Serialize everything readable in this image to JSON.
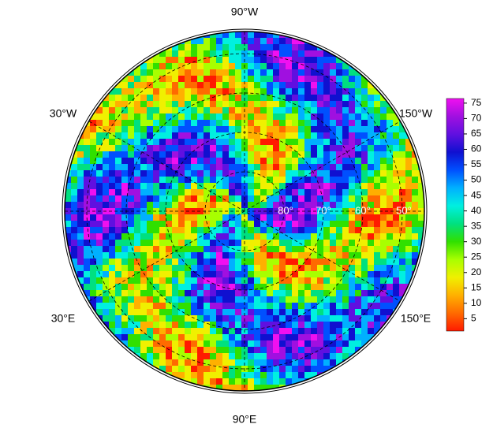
{
  "map": {
    "longitude_labels": [
      "90°W",
      "30°W",
      "150°W",
      "30°E",
      "150°E",
      "90°E"
    ],
    "latitude_labels": [
      "80°",
      "70°",
      "60°",
      "50°"
    ],
    "colorbar": {
      "lim": [
        1,
        76.5
      ],
      "ticks": [
        5,
        10,
        15,
        20,
        25,
        30,
        35,
        40,
        45,
        50,
        55,
        60,
        65,
        70,
        75
      ],
      "colors": [
        "#ff1a00",
        "#ff6a00",
        "#ffb000",
        "#f0f000",
        "#a8ff00",
        "#30e000",
        "#00e080",
        "#00f0e0",
        "#00b0ff",
        "#0050ff",
        "#1010d0",
        "#6010e0",
        "#a010e0",
        "#f010f0"
      ]
    }
  }
}
